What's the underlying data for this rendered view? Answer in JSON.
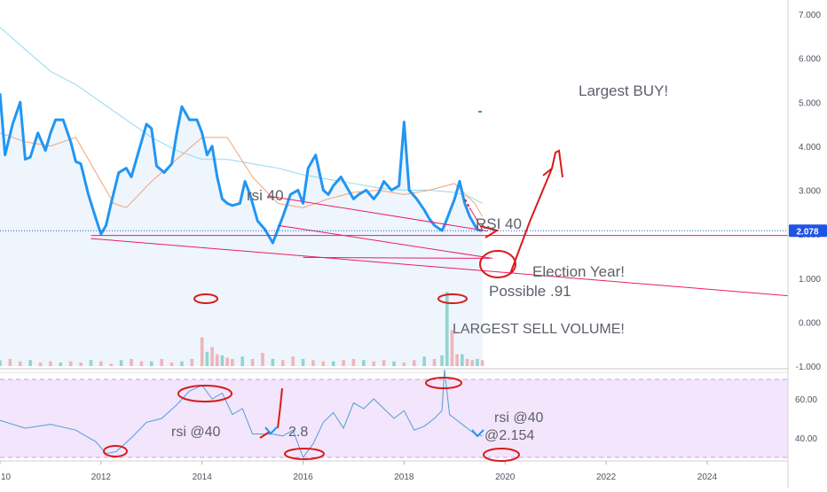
{
  "chart_data": [
    {
      "type": "line",
      "series": [
        {
          "type": "line",
          "x": [
            2010.0,
            2010.1,
            2010.25,
            2010.4,
            2010.5,
            2010.6,
            2010.75,
            2010.9,
            2011.0,
            2011.1,
            2011.25,
            2011.4,
            2011.5,
            2011.6,
            2011.75,
            2011.9,
            2012.0,
            2012.1,
            2012.2,
            2012.35,
            2012.5,
            2012.6,
            2012.75,
            2012.9,
            2013.0,
            2013.1,
            2013.25,
            2013.4,
            2013.5,
            2013.6,
            2013.75,
            2013.9,
            2014.0,
            2014.1,
            2014.2,
            2014.3,
            2014.4,
            2014.5,
            2014.6,
            2014.75,
            2014.85,
            2014.95,
            2015.1,
            2015.25,
            2015.4,
            2015.5,
            2015.6,
            2015.75,
            2015.9,
            2016.0,
            2016.1,
            2016.25,
            2016.4,
            2016.5,
            2016.6,
            2016.75,
            2016.9,
            2017.0,
            2017.1,
            2017.25,
            2017.4,
            2017.5,
            2017.6,
            2017.75,
            2017.9,
            2018.0,
            2018.1,
            2018.25,
            2018.4,
            2018.5,
            2018.6,
            2018.75,
            2018.8,
            2018.9,
            2019.0,
            2019.1,
            2019.2,
            2019.3,
            2019.45,
            2019.55
          ],
          "y": [
            5.2,
            3.8,
            4.5,
            5.0,
            3.7,
            3.75,
            4.3,
            3.9,
            4.3,
            4.6,
            4.6,
            4.1,
            3.65,
            3.6,
            2.9,
            2.35,
            2.0,
            2.2,
            2.7,
            3.4,
            3.5,
            3.3,
            3.9,
            4.5,
            4.4,
            3.55,
            3.4,
            3.6,
            4.3,
            4.9,
            4.6,
            4.6,
            4.3,
            3.8,
            4.0,
            3.3,
            2.8,
            2.7,
            2.65,
            2.7,
            3.2,
            2.9,
            2.3,
            2.1,
            1.8,
            2.1,
            2.4,
            2.9,
            3.0,
            2.7,
            3.5,
            3.8,
            3.0,
            2.9,
            3.1,
            3.3,
            3.0,
            2.8,
            2.9,
            3.0,
            2.8,
            2.95,
            3.2,
            3.0,
            3.1,
            4.55,
            3.0,
            2.8,
            2.55,
            2.35,
            2.2,
            2.08,
            2.2,
            2.5,
            2.8,
            3.2,
            2.7,
            2.4,
            2.1,
            2.078
          ]
        },
        {
          "type": "line",
          "x": [
            2010.0,
            2010.5,
            2011.0,
            2011.5,
            2012.0,
            2012.25,
            2012.5,
            2013.0,
            2013.5,
            2014.0,
            2014.5,
            2015.0,
            2015.5,
            2016.0,
            2016.5,
            2017.0,
            2017.5,
            2018.0,
            2018.5,
            2019.0,
            2019.4,
            2019.55
          ],
          "y": [
            4.3,
            4.1,
            4.0,
            4.2,
            3.2,
            2.7,
            2.6,
            3.2,
            3.7,
            4.2,
            4.2,
            3.3,
            2.7,
            2.6,
            2.8,
            2.95,
            3.0,
            2.9,
            3.0,
            3.15,
            2.7,
            2.4
          ]
        },
        {
          "type": "line",
          "x": [
            2010.0,
            2010.5,
            2011.0,
            2011.5,
            2012.0,
            2012.5,
            2013.0,
            2013.5,
            2014.0,
            2014.5,
            2015.0,
            2015.5,
            2016.0,
            2016.5,
            2017.0,
            2017.5,
            2018.0,
            2018.5,
            2019.0,
            2019.3,
            2019.55
          ],
          "y": [
            6.7,
            6.2,
            5.7,
            5.4,
            5.0,
            4.6,
            4.2,
            3.9,
            3.7,
            3.7,
            3.6,
            3.5,
            3.35,
            3.25,
            3.15,
            3.05,
            3.0,
            3.0,
            2.95,
            2.85,
            2.7
          ]
        },
        {
          "type": "bar",
          "x": [
            2010.0,
            2010.2,
            2010.4,
            2010.6,
            2010.8,
            2011.0,
            2011.2,
            2011.4,
            2011.6,
            2011.8,
            2012.0,
            2012.2,
            2012.4,
            2012.6,
            2012.8,
            2013.0,
            2013.2,
            2013.4,
            2013.6,
            2013.8,
            2014.0,
            2014.1,
            2014.2,
            2014.3,
            2014.4,
            2014.5,
            2014.6,
            2014.8,
            2015.0,
            2015.2,
            2015.4,
            2015.6,
            2015.8,
            2016.0,
            2016.2,
            2016.4,
            2016.6,
            2016.8,
            2017.0,
            2017.2,
            2017.4,
            2017.6,
            2017.8,
            2018.0,
            2018.2,
            2018.4,
            2018.6,
            2018.75,
            2018.85,
            2018.95,
            2019.05,
            2019.15,
            2019.25,
            2019.35,
            2019.45,
            2019.55
          ],
          "y": [
            0.25,
            0.3,
            0.2,
            0.25,
            0.15,
            0.2,
            0.15,
            0.2,
            0.15,
            0.25,
            0.2,
            0.1,
            0.25,
            0.3,
            0.2,
            0.2,
            0.3,
            0.15,
            0.2,
            0.3,
            1.2,
            0.6,
            0.8,
            0.5,
            0.45,
            0.35,
            0.3,
            0.4,
            0.3,
            0.55,
            0.3,
            0.25,
            0.4,
            0.3,
            0.25,
            0.2,
            0.2,
            0.25,
            0.3,
            0.25,
            0.2,
            0.25,
            0.2,
            0.15,
            0.25,
            0.4,
            0.3,
            0.45,
            3.1,
            1.5,
            0.5,
            0.5,
            0.3,
            0.25,
            0.3,
            0.25
          ]
        }
      ],
      "yticks": [
        "7.000",
        "6.000",
        "5.000",
        "4.000",
        "3.000",
        "2.000",
        "1.000",
        "0.000",
        "-1.000"
      ],
      "xticks": [
        "10",
        "2012",
        "2014",
        "2016",
        "2018",
        "2020",
        "2022",
        "2024"
      ],
      "ylim": [
        -1,
        7
      ],
      "xlim": [
        2010.0,
        2025.6
      ],
      "last_price": "2.078",
      "annotations": [
        "Largest BUY!",
        "rsi 40",
        "RSI 40",
        "Election Year!",
        "Possible .91",
        "LARGEST SELL VOLUME!"
      ],
      "colors": {
        "price": "#2196f3",
        "ema_fast": "#f5a272",
        "ema_slow": "#8fd9f2",
        "vol_up": "#7fcfc9",
        "vol_down": "#f1a8ae",
        "drawing": "#e91e63",
        "pen": "#d81b1b",
        "price_badge": "#1e53e5"
      }
    },
    {
      "type": "line",
      "series": [
        {
          "type": "line",
          "x": [
            2010.0,
            2010.5,
            2011.0,
            2011.5,
            2011.9,
            2012.1,
            2012.3,
            2012.6,
            2012.9,
            2013.2,
            2013.5,
            2013.75,
            2014.0,
            2014.2,
            2014.4,
            2014.6,
            2014.8,
            2015.0,
            2015.2,
            2015.4,
            2015.6,
            2015.8,
            2016.0,
            2016.2,
            2016.4,
            2016.6,
            2016.8,
            2017.0,
            2017.2,
            2017.4,
            2017.6,
            2017.8,
            2018.0,
            2018.2,
            2018.4,
            2018.6,
            2018.75,
            2018.8,
            2018.9,
            2019.0,
            2019.2,
            2019.4,
            2019.55
          ],
          "y": [
            49,
            45,
            47,
            44,
            38,
            32,
            33,
            40,
            48,
            50,
            57,
            64,
            67,
            60,
            63,
            52,
            55,
            42,
            42,
            42,
            41,
            44,
            30,
            37,
            48,
            53,
            45,
            58,
            55,
            60,
            55,
            50,
            54,
            44,
            46,
            50,
            54,
            75,
            52,
            50,
            46,
            42,
            41
          ]
        }
      ],
      "yticks": [
        "60.00",
        "40.00"
      ],
      "ylim": [
        28,
        76
      ],
      "bands": [
        30,
        70
      ],
      "annotations": [
        "rsi @40",
        "2.8",
        "rsi @40",
        "@2.154"
      ],
      "colors": {
        "rsi": "#4ca1d5",
        "band_fill": "#f3e5fb",
        "band_line": "#c9a3e0"
      }
    }
  ]
}
